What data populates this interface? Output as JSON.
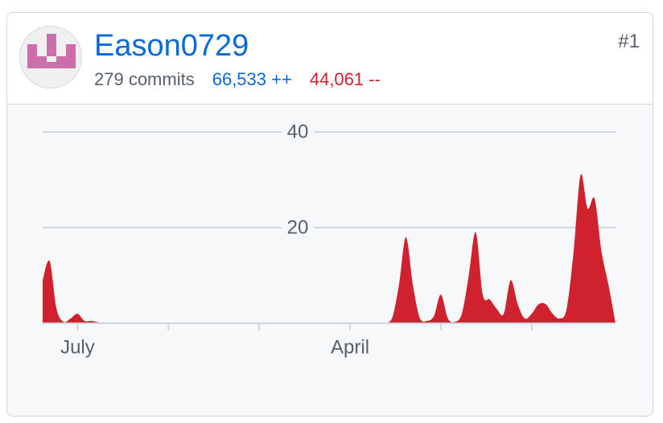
{
  "header": {
    "username": "Eason0729",
    "rank": "#1",
    "commits": "279 commits",
    "additions": "66,533 ++",
    "deletions": "44,061 --"
  },
  "chart_data": {
    "type": "area",
    "color": "#cf222e",
    "x": [
      0,
      1,
      2,
      3,
      4,
      5,
      6,
      7,
      8,
      9,
      10,
      11,
      12,
      13,
      14,
      15,
      16,
      17,
      18,
      19,
      20,
      21,
      22,
      23,
      24,
      25,
      26,
      27,
      28,
      29,
      30,
      31,
      32,
      33,
      34,
      35,
      36,
      37,
      38,
      39,
      40,
      41,
      42,
      43,
      44,
      45,
      46,
      47,
      48,
      49,
      50,
      51,
      52,
      53,
      54,
      55,
      56,
      57,
      58,
      59,
      60,
      61,
      62,
      63,
      64,
      65,
      66,
      67,
      68,
      69,
      70,
      71,
      72,
      73,
      74,
      75,
      76,
      77,
      78,
      79,
      80,
      81,
      82
    ],
    "values": [
      9,
      13,
      3,
      0.3,
      1,
      2,
      0.5,
      0.5,
      0.2,
      0,
      0,
      0,
      0,
      0,
      0,
      0,
      0,
      0,
      0,
      0,
      0,
      0,
      0,
      0,
      0,
      0,
      0,
      0,
      0,
      0,
      0,
      0,
      0,
      0,
      0,
      0,
      0,
      0,
      0,
      0,
      0,
      0,
      0,
      0,
      0,
      0,
      0,
      0,
      0,
      0,
      1,
      8,
      18,
      8,
      1,
      0.5,
      1.5,
      6,
      1,
      0.3,
      2,
      10,
      19,
      6,
      5,
      3,
      2,
      9,
      4,
      1,
      2,
      4,
      4,
      2,
      1,
      3,
      15,
      31,
      24,
      26,
      15,
      8,
      0
    ],
    "xlim": [
      0,
      82
    ],
    "xticks": [
      {
        "value": 5,
        "label": "July"
      },
      {
        "value": 18,
        "label": null
      },
      {
        "value": 31,
        "label": null
      },
      {
        "value": 44,
        "label": "April"
      },
      {
        "value": 57,
        "label": null
      },
      {
        "value": 70,
        "label": null
      }
    ],
    "ylim": [
      0,
      40
    ],
    "yticks": [
      20,
      40
    ],
    "grid": true
  }
}
